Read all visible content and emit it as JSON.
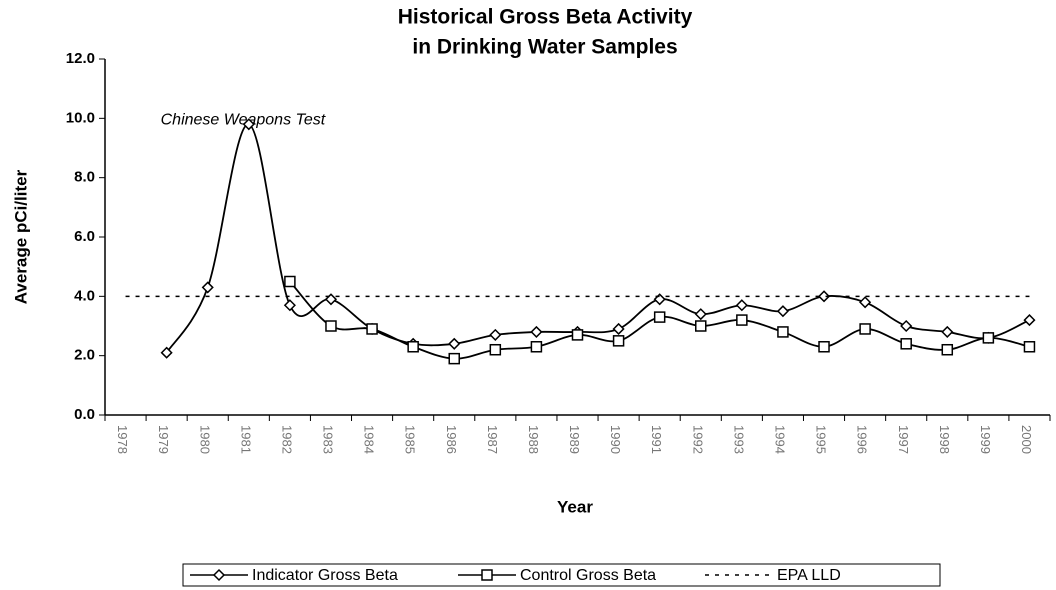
{
  "chart_data": {
    "type": "line",
    "title": [
      "Historical Gross Beta Activity",
      "in Drinking Water Samples"
    ],
    "x_label": "Year",
    "y_label": "Average pCi/liter",
    "annotation": {
      "text": "Chinese Weapons Test",
      "category": "1979",
      "y": 10.0
    },
    "categories": [
      "1978",
      "1979",
      "1980",
      "1981",
      "1982",
      "1983",
      "1984",
      "1985",
      "1986",
      "1987",
      "1988",
      "1989",
      "1990",
      "1991",
      "1992",
      "1993",
      "1994",
      "1995",
      "1996",
      "1997",
      "1998",
      "1999",
      "2000"
    ],
    "series": [
      {
        "name": "Indicator Gross Beta",
        "color": "#000000",
        "marker": "diamond",
        "smooth": true,
        "values": [
          null,
          2.1,
          4.3,
          9.8,
          3.7,
          3.9,
          2.9,
          2.4,
          2.4,
          2.7,
          2.8,
          2.8,
          2.9,
          3.9,
          3.4,
          3.7,
          3.5,
          4.0,
          3.8,
          3.0,
          2.8,
          2.6,
          3.2
        ]
      },
      {
        "name": "Control Gross Beta",
        "color": "#000000",
        "marker": "square",
        "smooth": true,
        "values": [
          null,
          null,
          null,
          null,
          4.5,
          3.0,
          2.9,
          2.3,
          1.9,
          2.2,
          2.3,
          2.7,
          2.5,
          3.3,
          3.0,
          3.2,
          2.8,
          2.3,
          2.9,
          2.4,
          2.2,
          2.6,
          2.3
        ]
      },
      {
        "name": "EPA LLD",
        "color": "#000000",
        "marker": "none",
        "dashed": true,
        "smooth": false,
        "values": [
          4.0,
          4.0,
          4.0,
          4.0,
          4.0,
          4.0,
          4.0,
          4.0,
          4.0,
          4.0,
          4.0,
          4.0,
          4.0,
          4.0,
          4.0,
          4.0,
          4.0,
          4.0,
          4.0,
          4.0,
          4.0,
          4.0,
          4.0
        ]
      }
    ],
    "ylim": [
      0,
      12
    ],
    "yticks": [
      {
        "value": 0,
        "label": "0.0"
      },
      {
        "value": 2,
        "label": "2.0"
      },
      {
        "value": 4,
        "label": "4.0"
      },
      {
        "value": 6,
        "label": "6.0"
      },
      {
        "value": 8,
        "label": "8.0"
      },
      {
        "value": 10,
        "label": "10.0"
      },
      {
        "value": 12,
        "label": "12.0"
      }
    ],
    "grid": false,
    "legend": "bottom"
  }
}
